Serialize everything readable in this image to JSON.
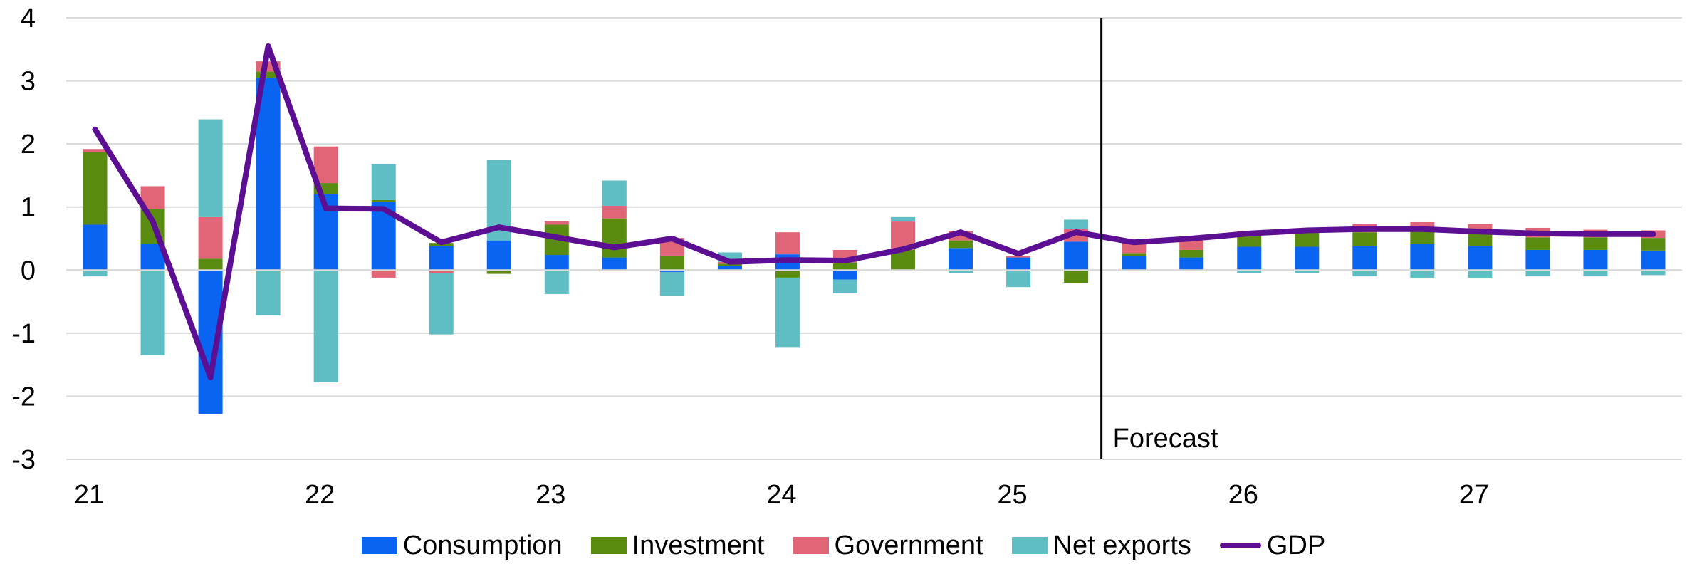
{
  "chart_data": {
    "type": "bar",
    "stacked": true,
    "categories": [
      "21Q1",
      "21Q2",
      "21Q3",
      "21Q4",
      "22Q1",
      "22Q2",
      "22Q3",
      "22Q4",
      "23Q1",
      "23Q2",
      "23Q3",
      "23Q4",
      "24Q1",
      "24Q2",
      "24Q3",
      "24Q4",
      "25Q1",
      "25Q2",
      "25Q3",
      "25Q4",
      "26Q1",
      "26Q2",
      "26Q3",
      "26Q4",
      "27Q1",
      "27Q2",
      "27Q3",
      "27Q4"
    ],
    "x_tick_labels": [
      "21",
      "22",
      "23",
      "24",
      "25",
      "26",
      "27"
    ],
    "y_ticks": [
      "4",
      "3",
      "2",
      "1",
      "0",
      "-1",
      "-2",
      "-3"
    ],
    "ylim": [
      -3,
      4
    ],
    "grid": true,
    "legend_position": "bottom",
    "forecast_label": "Forecast",
    "forecast_start_index": 18,
    "series": [
      {
        "name": "Consumption",
        "color": "#0a64f2",
        "values": [
          0.72,
          0.42,
          -2.28,
          3.05,
          1.2,
          1.08,
          0.38,
          0.47,
          0.24,
          0.2,
          -0.03,
          0.07,
          0.25,
          -0.15,
          0.0,
          0.35,
          0.2,
          0.45,
          0.22,
          0.2,
          0.37,
          0.37,
          0.38,
          0.41,
          0.38,
          0.32,
          0.32,
          0.31
        ]
      },
      {
        "name": "Investment",
        "color": "#5a8c12",
        "values": [
          1.15,
          0.55,
          0.18,
          0.1,
          0.18,
          0.03,
          0.05,
          -0.06,
          0.48,
          0.62,
          0.23,
          0.03,
          -0.12,
          0.12,
          0.32,
          0.12,
          -0.02,
          -0.2,
          0.05,
          0.12,
          0.2,
          0.22,
          0.22,
          0.2,
          0.2,
          0.2,
          0.2,
          0.2
        ]
      },
      {
        "name": "Government",
        "color": "#e06677",
        "values": [
          0.05,
          0.36,
          0.66,
          0.16,
          0.58,
          -0.12,
          -0.05,
          0.0,
          0.06,
          0.2,
          0.28,
          0.03,
          0.35,
          0.2,
          0.45,
          0.15,
          0.02,
          0.2,
          0.18,
          0.15,
          0.05,
          0.05,
          0.13,
          0.15,
          0.15,
          0.15,
          0.12,
          0.12
        ]
      },
      {
        "name": "Net exports",
        "color": "#5fbdc4",
        "values": [
          -0.1,
          -1.35,
          1.55,
          -0.72,
          -1.78,
          0.57,
          -0.97,
          1.28,
          -0.38,
          0.4,
          -0.38,
          0.15,
          -1.1,
          -0.22,
          0.07,
          -0.05,
          -0.25,
          0.15,
          0.0,
          0.0,
          -0.05,
          -0.05,
          -0.1,
          -0.12,
          -0.12,
          -0.1,
          -0.1,
          -0.08
        ]
      }
    ],
    "line_series": {
      "name": "GDP",
      "color": "#5c0f93",
      "values": [
        2.23,
        0.77,
        -1.7,
        3.55,
        0.98,
        0.97,
        0.44,
        0.68,
        0.52,
        0.36,
        0.5,
        0.13,
        0.16,
        0.15,
        0.33,
        0.6,
        0.26,
        0.6,
        0.44,
        0.5,
        0.58,
        0.63,
        0.65,
        0.65,
        0.61,
        0.58,
        0.57,
        0.57
      ]
    }
  }
}
